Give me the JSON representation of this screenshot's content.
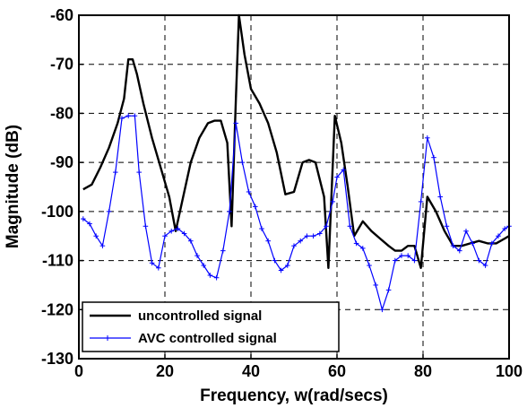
{
  "chart_data": {
    "type": "line",
    "xlabel": "Frequency, w(rad/secs)",
    "ylabel": "Magnitude (dB)",
    "xlim": [
      0,
      100
    ],
    "ylim": [
      -130,
      -60
    ],
    "x_ticks": [
      "0",
      "20",
      "40",
      "60",
      "80",
      "100"
    ],
    "y_ticks": [
      "-60",
      "-70",
      "-80",
      "-90",
      "-100",
      "-110",
      "-120",
      "-130"
    ],
    "grid": true,
    "legend_position": "bottom-left",
    "series": [
      {
        "name": "uncontrolled signal",
        "color": "#000000",
        "marker": "none",
        "points": [
          [
            1,
            -95.5
          ],
          [
            3,
            -94.5
          ],
          [
            5,
            -91
          ],
          [
            7,
            -87
          ],
          [
            9,
            -82
          ],
          [
            10.5,
            -77
          ],
          [
            11.5,
            -69
          ],
          [
            12.5,
            -69
          ],
          [
            13.5,
            -72
          ],
          [
            15,
            -78
          ],
          [
            17,
            -85
          ],
          [
            19,
            -91
          ],
          [
            21,
            -97
          ],
          [
            22.5,
            -104
          ],
          [
            24,
            -98
          ],
          [
            26,
            -90
          ],
          [
            28,
            -85
          ],
          [
            30,
            -82
          ],
          [
            31.5,
            -81.5
          ],
          [
            33,
            -81.5
          ],
          [
            34.5,
            -86
          ],
          [
            35.5,
            -103
          ],
          [
            36.5,
            -77
          ],
          [
            37.2,
            -60
          ],
          [
            38.5,
            -68
          ],
          [
            40,
            -75
          ],
          [
            42,
            -78
          ],
          [
            44,
            -82
          ],
          [
            46,
            -88
          ],
          [
            48,
            -96.5
          ],
          [
            50,
            -96
          ],
          [
            52,
            -90
          ],
          [
            53.5,
            -89.5
          ],
          [
            55,
            -90
          ],
          [
            57,
            -97
          ],
          [
            58,
            -111.5
          ],
          [
            59.5,
            -80.5
          ],
          [
            61,
            -86
          ],
          [
            62.5,
            -95
          ],
          [
            64,
            -105
          ],
          [
            66,
            -102
          ],
          [
            68,
            -104
          ],
          [
            70,
            -105.5
          ],
          [
            72,
            -107
          ],
          [
            73.5,
            -108
          ],
          [
            75,
            -108
          ],
          [
            76.5,
            -107
          ],
          [
            78,
            -107
          ],
          [
            79.5,
            -111.5
          ],
          [
            81,
            -97
          ],
          [
            83,
            -100
          ],
          [
            85,
            -104
          ],
          [
            87,
            -107
          ],
          [
            89,
            -107
          ],
          [
            91,
            -106.5
          ],
          [
            93,
            -106
          ],
          [
            95,
            -106.5
          ],
          [
            97,
            -106.5
          ],
          [
            99,
            -105.5
          ],
          [
            100,
            -105
          ]
        ]
      },
      {
        "name": "AVC controlled signal",
        "color": "#0000ff",
        "marker": "plus",
        "points": [
          [
            1,
            -101.5
          ],
          [
            2.5,
            -102.5
          ],
          [
            4,
            -105
          ],
          [
            5.5,
            -107
          ],
          [
            7,
            -100
          ],
          [
            8.5,
            -92
          ],
          [
            10,
            -81
          ],
          [
            11.5,
            -80.5
          ],
          [
            13,
            -80.5
          ],
          [
            14,
            -92
          ],
          [
            15.5,
            -103
          ],
          [
            17,
            -110.5
          ],
          [
            18.5,
            -111.5
          ],
          [
            20,
            -105
          ],
          [
            21.5,
            -104
          ],
          [
            23,
            -103.5
          ],
          [
            24.5,
            -104.5
          ],
          [
            26,
            -106
          ],
          [
            27.5,
            -109
          ],
          [
            29,
            -111
          ],
          [
            30.5,
            -113
          ],
          [
            32,
            -113.5
          ],
          [
            33.5,
            -108
          ],
          [
            35,
            -100
          ],
          [
            36.5,
            -82
          ],
          [
            38,
            -90
          ],
          [
            39.5,
            -96
          ],
          [
            41,
            -99
          ],
          [
            42.5,
            -103.5
          ],
          [
            44,
            -106
          ],
          [
            45.5,
            -110
          ],
          [
            47,
            -112
          ],
          [
            48.5,
            -111
          ],
          [
            50,
            -107
          ],
          [
            51.5,
            -106
          ],
          [
            53,
            -105
          ],
          [
            54.5,
            -105
          ],
          [
            56,
            -104.5
          ],
          [
            57.5,
            -103
          ],
          [
            59,
            -98
          ],
          [
            60,
            -93
          ],
          [
            61.5,
            -91.5
          ],
          [
            63,
            -103
          ],
          [
            64.5,
            -106.5
          ],
          [
            66,
            -107.5
          ],
          [
            67.5,
            -111
          ],
          [
            69,
            -115
          ],
          [
            70.5,
            -120
          ],
          [
            72,
            -116
          ],
          [
            73.5,
            -110
          ],
          [
            75,
            -109
          ],
          [
            76.5,
            -109
          ],
          [
            78,
            -110
          ],
          [
            79.5,
            -98
          ],
          [
            81,
            -85
          ],
          [
            82.5,
            -89
          ],
          [
            84,
            -97
          ],
          [
            85.5,
            -103
          ],
          [
            87,
            -107
          ],
          [
            88.5,
            -108
          ],
          [
            90,
            -104
          ],
          [
            91.5,
            -106.5
          ],
          [
            93,
            -110
          ],
          [
            94.5,
            -111
          ],
          [
            96,
            -106.5
          ],
          [
            97.5,
            -105
          ],
          [
            99,
            -103.5
          ],
          [
            100,
            -103
          ]
        ]
      }
    ]
  }
}
